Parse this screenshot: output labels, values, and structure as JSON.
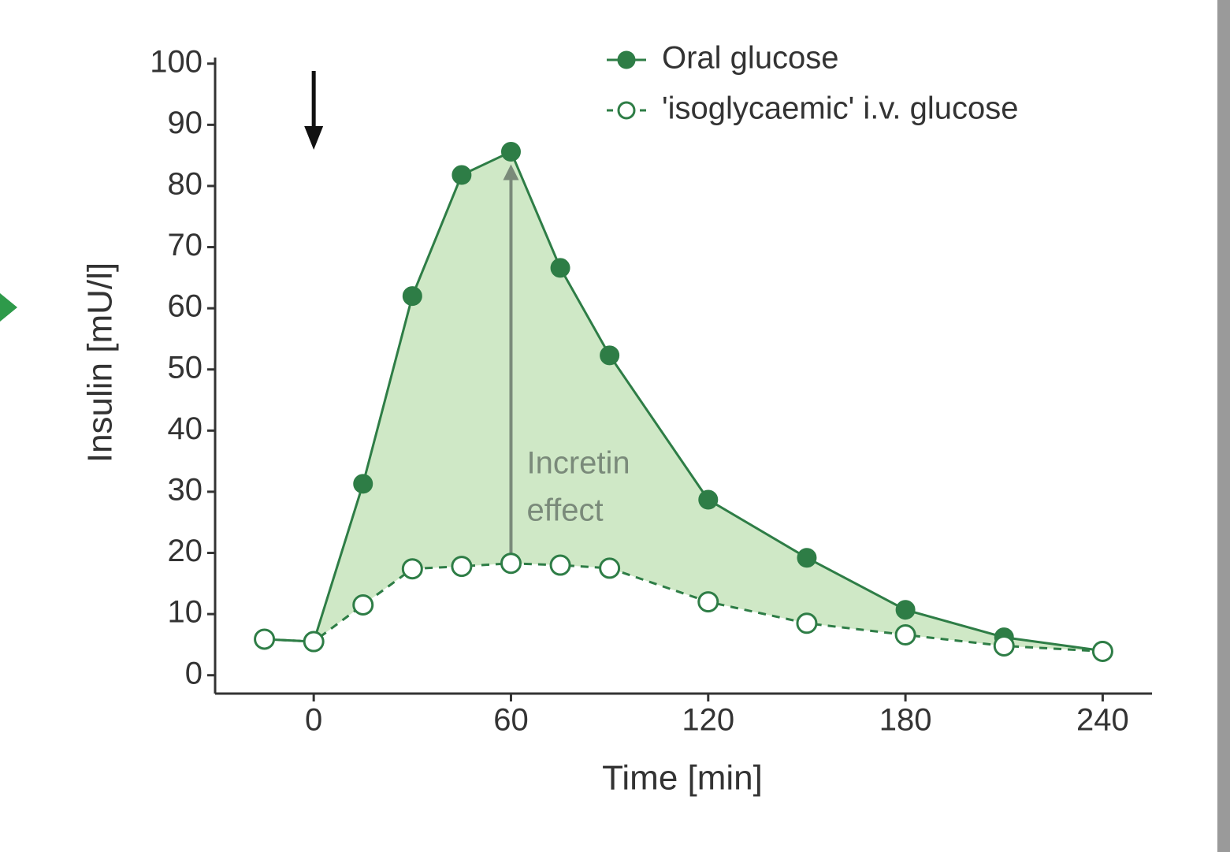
{
  "chart_data": {
    "type": "line",
    "xlabel": "Time [min]",
    "ylabel": "Insulin [mU/l]",
    "x": [
      -15,
      0,
      15,
      30,
      45,
      60,
      75,
      90,
      120,
      150,
      180,
      210,
      240
    ],
    "series": [
      {
        "name": "Oral glucose",
        "color": "#2e7d46",
        "marker": "filled",
        "dashed": false,
        "values": [
          5.9,
          5.5,
          31.3,
          62,
          81.8,
          85.6,
          66.6,
          52.3,
          28.7,
          19.2,
          10.7,
          6.2,
          4.0
        ]
      },
      {
        "name": "'isoglycaemic' i.v. glucose",
        "color": "#2e7d46",
        "marker": "open",
        "dashed": true,
        "values": [
          5.9,
          5.5,
          11.5,
          17.4,
          17.8,
          18.3,
          18,
          17.5,
          12,
          8.5,
          6.6,
          4.8,
          3.9
        ]
      }
    ],
    "fill_between": "#cfe8c6",
    "annotation": [
      "Incretin",
      "effect"
    ],
    "xlim": [
      -30,
      255
    ],
    "ylim": [
      -3,
      101
    ],
    "xticks": [
      0,
      60,
      120,
      180,
      240
    ],
    "yticks": [
      0,
      10,
      20,
      30,
      40,
      50,
      60,
      70,
      80,
      90,
      100
    ],
    "legend": "top-right"
  }
}
